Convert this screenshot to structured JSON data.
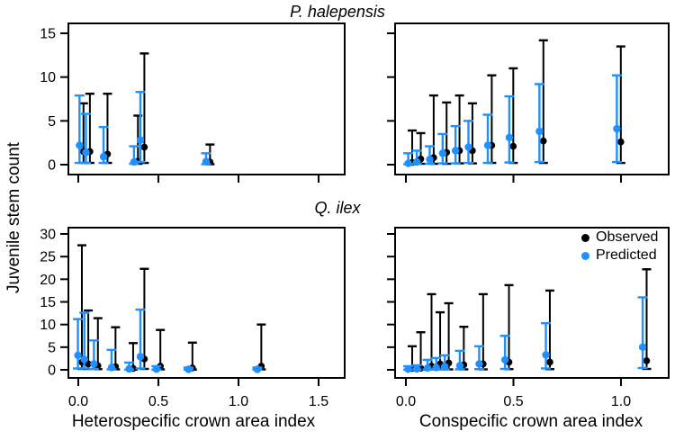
{
  "figure": {
    "ylabel": "Juvenile stem count",
    "legend": {
      "items": [
        {
          "label": "Observed",
          "color": "#000000"
        },
        {
          "label": "Predicted",
          "color": "#1E90FF"
        }
      ],
      "position": "top-right of bottom-right panel"
    },
    "colors": {
      "observed": "#000000",
      "predicted": "#1E90FF",
      "axis": "#000000",
      "background": "#FFFFFF"
    }
  },
  "chart_data": [
    {
      "id": "p-halepensis-heterospecific",
      "type": "scatter",
      "title": "P. halepensis",
      "xlabel": "",
      "ylim": [
        0,
        15
      ],
      "xlim": [
        -0.06,
        1.72
      ],
      "grid": false,
      "xticks": [
        0.0,
        0.5,
        1.0,
        1.5
      ],
      "xtick_labels": [
        "0.0",
        "0.5",
        "1.0",
        "1.5"
      ],
      "yticks": [
        0,
        5,
        10,
        15
      ],
      "ytick_labels": [
        "0",
        "5",
        "10",
        "15"
      ],
      "point_format": "[x, y, lower, upper]",
      "series": [
        {
          "name": "Observed",
          "color": "#000000",
          "points": [
            [
              0.02,
              1.5,
              0.2,
              7.0
            ],
            [
              0.06,
              1.5,
              0.2,
              8.1
            ],
            [
              0.17,
              1.2,
              0.2,
              8.1
            ],
            [
              0.36,
              0.4,
              0.1,
              5.6
            ],
            [
              0.4,
              2.0,
              0.2,
              12.7
            ],
            [
              0.81,
              0.3,
              0.05,
              2.3
            ]
          ]
        },
        {
          "name": "Predicted",
          "color": "#1E90FF",
          "points": [
            [
              0.02,
              2.2,
              0.2,
              7.9
            ],
            [
              0.06,
              1.4,
              0.2,
              5.8
            ],
            [
              0.17,
              0.9,
              0.2,
              4.3
            ],
            [
              0.36,
              0.3,
              0.1,
              2.1
            ],
            [
              0.4,
              2.8,
              0.3,
              8.3
            ],
            [
              0.81,
              0.35,
              0.05,
              1.3
            ]
          ]
        }
      ]
    },
    {
      "id": "p-halepensis-conspecific",
      "type": "scatter",
      "title": "P. halepensis",
      "xlabel": "",
      "ylim": [
        0,
        15
      ],
      "xlim": [
        -0.05,
        1.22
      ],
      "grid": false,
      "xticks": [
        0.0,
        0.5,
        1.0
      ],
      "xtick_labels": [
        "0.0",
        "0.5",
        "1.0"
      ],
      "yticks": [
        0,
        5,
        10,
        15
      ],
      "ytick_labels": [
        "",
        "",
        "",
        ""
      ],
      "point_format": "[x, y, lower, upper]",
      "series": [
        {
          "name": "Observed",
          "color": "#000000",
          "points": [
            [
              0.02,
              0.25,
              0.05,
              3.9
            ],
            [
              0.06,
              0.65,
              0.1,
              3.6
            ],
            [
              0.12,
              0.8,
              0.1,
              7.9
            ],
            [
              0.18,
              1.4,
              0.1,
              7.1
            ],
            [
              0.24,
              1.6,
              0.15,
              7.9
            ],
            [
              0.3,
              1.6,
              0.15,
              7.0
            ],
            [
              0.39,
              2.2,
              0.2,
              10.2
            ],
            [
              0.49,
              2.1,
              0.2,
              11.0
            ],
            [
              0.63,
              2.7,
              0.2,
              14.2
            ],
            [
              0.99,
              2.6,
              0.2,
              13.5
            ]
          ]
        },
        {
          "name": "Predicted",
          "color": "#1E90FF",
          "points": [
            [
              0.02,
              0.15,
              0.05,
              1.3
            ],
            [
              0.06,
              0.3,
              0.1,
              1.6
            ],
            [
              0.12,
              0.6,
              0.1,
              2.1
            ],
            [
              0.18,
              1.3,
              0.15,
              3.5
            ],
            [
              0.24,
              1.6,
              0.15,
              4.4
            ],
            [
              0.3,
              2.0,
              0.2,
              5.0
            ],
            [
              0.39,
              2.2,
              0.2,
              5.7
            ],
            [
              0.49,
              3.1,
              0.25,
              7.8
            ],
            [
              0.63,
              3.8,
              0.3,
              9.2
            ],
            [
              0.99,
              4.1,
              0.3,
              10.2
            ]
          ]
        }
      ]
    },
    {
      "id": "q-ilex-heterospecific",
      "type": "scatter",
      "title": "Q. ilex",
      "xlabel": "Heterospecific crown area index",
      "ylim": [
        0,
        30
      ],
      "xlim": [
        -0.06,
        1.72
      ],
      "grid": false,
      "xticks": [
        0.0,
        0.5,
        1.0,
        1.5
      ],
      "xtick_labels": [
        "0.0",
        "0.5",
        "1.0",
        "1.5"
      ],
      "yticks": [
        0,
        5,
        10,
        15,
        20,
        25,
        30
      ],
      "ytick_labels": [
        "0",
        "5",
        "10",
        "15",
        "20",
        "25",
        "30"
      ],
      "point_format": "[x, y, lower, upper]",
      "series": [
        {
          "name": "Observed",
          "color": "#000000",
          "points": [
            [
              0.01,
              1.7,
              0.2,
              27.5
            ],
            [
              0.05,
              1.3,
              0.2,
              13.1
            ],
            [
              0.11,
              0.9,
              0.15,
              11.4
            ],
            [
              0.22,
              0.7,
              0.1,
              9.4
            ],
            [
              0.33,
              0.3,
              0.05,
              5.9
            ],
            [
              0.4,
              2.4,
              0.2,
              22.3
            ],
            [
              0.5,
              0.8,
              0.1,
              8.8
            ],
            [
              0.7,
              0.4,
              0.05,
              6.0
            ],
            [
              1.13,
              0.8,
              0.1,
              10.0
            ]
          ]
        },
        {
          "name": "Predicted",
          "color": "#1E90FF",
          "points": [
            [
              0.01,
              3.2,
              0.3,
              11.2
            ],
            [
              0.05,
              2.3,
              0.3,
              12.6
            ],
            [
              0.11,
              1.3,
              0.2,
              6.5
            ],
            [
              0.22,
              0.5,
              0.1,
              4.4
            ],
            [
              0.33,
              0.2,
              0.05,
              1.6
            ],
            [
              0.4,
              2.9,
              0.3,
              13.3
            ],
            [
              0.5,
              0.15,
              0.05,
              0.8
            ],
            [
              0.7,
              0.1,
              0.05,
              0.5
            ],
            [
              1.13,
              0.1,
              0.05,
              0.5
            ]
          ]
        }
      ]
    },
    {
      "id": "q-ilex-conspecific",
      "type": "scatter",
      "title": "Q. ilex",
      "xlabel": "Conspecific crown area index",
      "ylim": [
        0,
        30
      ],
      "xlim": [
        -0.05,
        1.22
      ],
      "grid": false,
      "xticks": [
        0.0,
        0.5,
        1.0
      ],
      "xtick_labels": [
        "0.0",
        "0.5",
        "1.0"
      ],
      "yticks": [
        0,
        5,
        10,
        15,
        20,
        25,
        30
      ],
      "ytick_labels": [
        "",
        "",
        "",
        "",
        "",
        "",
        ""
      ],
      "point_format": "[x, y, lower, upper]",
      "series": [
        {
          "name": "Observed",
          "color": "#000000",
          "points": [
            [
              0.02,
              0.3,
              0.05,
              5.2
            ],
            [
              0.06,
              0.35,
              0.05,
              8.3
            ],
            [
              0.11,
              0.8,
              0.1,
              16.7
            ],
            [
              0.15,
              1.3,
              0.1,
              12.7
            ],
            [
              0.19,
              1.5,
              0.1,
              14.7
            ],
            [
              0.26,
              1.1,
              0.1,
              9.5
            ],
            [
              0.35,
              1.3,
              0.1,
              16.7
            ],
            [
              0.47,
              1.7,
              0.15,
              18.7
            ],
            [
              0.66,
              1.7,
              0.15,
              17.5
            ],
            [
              1.11,
              2.0,
              0.2,
              22.2
            ]
          ]
        },
        {
          "name": "Predicted",
          "color": "#1E90FF",
          "points": [
            [
              0.02,
              0.15,
              0.05,
              0.8
            ],
            [
              0.06,
              0.2,
              0.05,
              1.0
            ],
            [
              0.11,
              0.4,
              0.1,
              2.2
            ],
            [
              0.15,
              0.5,
              0.1,
              2.6
            ],
            [
              0.19,
              0.7,
              0.1,
              3.2
            ],
            [
              0.26,
              0.9,
              0.1,
              4.2
            ],
            [
              0.35,
              1.3,
              0.15,
              5.2
            ],
            [
              0.47,
              2.2,
              0.2,
              7.5
            ],
            [
              0.66,
              3.3,
              0.3,
              10.3
            ],
            [
              1.11,
              5.0,
              0.4,
              16.0
            ]
          ]
        }
      ]
    }
  ]
}
